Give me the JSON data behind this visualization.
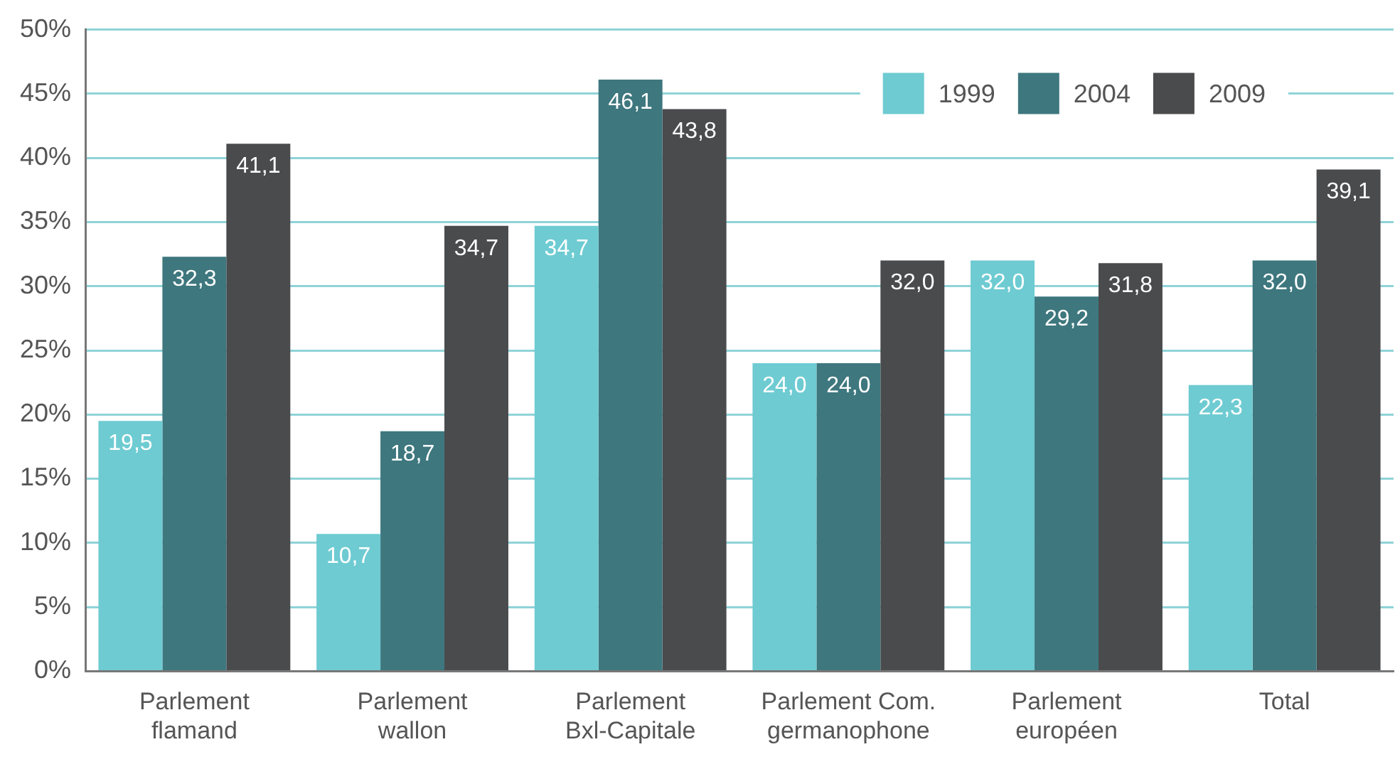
{
  "chart_data": {
    "type": "bar",
    "categories": [
      "Parlement flamand",
      "Parlement wallon",
      "Parlement Bxl-Capitale",
      "Parlement Com. germanophone",
      "Parlement européen",
      "Total"
    ],
    "series": [
      {
        "name": "1999",
        "color": "#6ecbd2",
        "values": [
          19.5,
          10.7,
          34.7,
          24.0,
          32.0,
          22.3
        ],
        "value_labels": [
          "19,5",
          "10,7",
          "34,7",
          "24,0",
          "32,0",
          "22,3"
        ]
      },
      {
        "name": "2004",
        "color": "#3e777e",
        "values": [
          32.3,
          18.7,
          46.1,
          24.0,
          29.2,
          32.0
        ],
        "value_labels": [
          "32,3",
          "18,7",
          "46,1",
          "24,0",
          "29,2",
          "32,0"
        ]
      },
      {
        "name": "2009",
        "color": "#4a4b4d",
        "values": [
          41.1,
          34.7,
          43.8,
          32.0,
          31.8,
          39.1
        ],
        "value_labels": [
          "41,1",
          "34,7",
          "43,8",
          "32,0",
          "31,8",
          "39,1"
        ]
      }
    ],
    "ylim": [
      0,
      50
    ],
    "yticks": [
      {
        "value": 0,
        "label": "0%"
      },
      {
        "value": 5,
        "label": "5%"
      },
      {
        "value": 10,
        "label": "10%"
      },
      {
        "value": 15,
        "label": "15%"
      },
      {
        "value": 20,
        "label": "20%"
      },
      {
        "value": 25,
        "label": "25%"
      },
      {
        "value": 30,
        "label": "30%"
      },
      {
        "value": 35,
        "label": "35%"
      },
      {
        "value": 40,
        "label": "40%"
      },
      {
        "value": 45,
        "label": "45%"
      },
      {
        "value": 50,
        "label": "50%"
      }
    ],
    "grid": "y",
    "legend": "top right"
  }
}
